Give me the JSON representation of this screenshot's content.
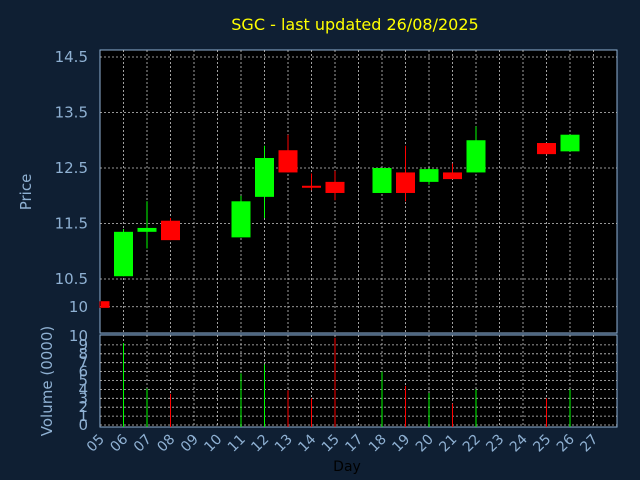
{
  "colors": {
    "background": "#0f1f33",
    "title": "#ffff00",
    "axis_text": "#8fb1d3",
    "panel_fill": "#000000",
    "grid": "#c8c8c8",
    "up": "#00ff00",
    "down": "#ff0000"
  },
  "chart_data": {
    "type": "candlestick",
    "title": "SGC - last updated 26/08/2025",
    "xlabel": "Day",
    "x_ticks": [
      "05",
      "06",
      "07",
      "08",
      "09",
      "10",
      "11",
      "12",
      "13",
      "14",
      "15",
      "17",
      "18",
      "19",
      "20",
      "21",
      "22",
      "23",
      "24",
      "25",
      "26",
      "27"
    ],
    "price_panel": {
      "ylabel": "Price",
      "ylim": [
        10,
        14.5
      ],
      "y_ticks": [
        "10",
        "10.5",
        "11.5",
        "12.5",
        "13.5",
        "14.5"
      ],
      "candles": [
        {
          "x": "05",
          "open": 10.1,
          "high": 10.1,
          "low": 9.98,
          "close": 9.98
        },
        {
          "x": "06",
          "open": 10.55,
          "high": 11.4,
          "low": 10.55,
          "close": 11.35
        },
        {
          "x": "07",
          "open": 11.35,
          "high": 11.9,
          "low": 11.05,
          "close": 11.42
        },
        {
          "x": "08",
          "open": 11.55,
          "high": 11.6,
          "low": 11.2,
          "close": 11.2
        },
        {
          "x": "11",
          "open": 11.25,
          "high": 12.0,
          "low": 11.25,
          "close": 11.9
        },
        {
          "x": "12",
          "open": 11.98,
          "high": 12.9,
          "low": 11.6,
          "close": 12.68
        },
        {
          "x": "13",
          "open": 12.82,
          "high": 13.1,
          "low": 12.42,
          "close": 12.42
        },
        {
          "x": "14",
          "open": 12.18,
          "high": 12.4,
          "low": 12.1,
          "close": 12.16
        },
        {
          "x": "15",
          "open": 12.25,
          "high": 12.45,
          "low": 11.92,
          "close": 12.05
        },
        {
          "x": "18",
          "open": 12.05,
          "high": 12.5,
          "low": 12.05,
          "close": 12.5
        },
        {
          "x": "19",
          "open": 12.42,
          "high": 12.9,
          "low": 11.9,
          "close": 12.05
        },
        {
          "x": "20",
          "open": 12.25,
          "high": 12.5,
          "low": 12.2,
          "close": 12.48
        },
        {
          "x": "21",
          "open": 12.42,
          "high": 12.58,
          "low": 12.3,
          "close": 12.3
        },
        {
          "x": "22",
          "open": 12.42,
          "high": 13.25,
          "low": 12.42,
          "close": 13.0
        },
        {
          "x": "25",
          "open": 12.95,
          "high": 12.95,
          "low": 12.75,
          "close": 12.75
        },
        {
          "x": "26",
          "open": 12.8,
          "high": 13.1,
          "low": 12.8,
          "close": 13.1
        }
      ]
    },
    "volume_panel": {
      "ylabel": "Volume (0000)",
      "ylim": [
        0,
        10
      ],
      "y_ticks": [
        "0",
        "1",
        "2",
        "3",
        "4",
        "5",
        "6",
        "7",
        "8",
        "9",
        "10"
      ],
      "bars": [
        {
          "x": "06",
          "value": 9.2,
          "direction": "up"
        },
        {
          "x": "07",
          "value": 4.1,
          "direction": "up"
        },
        {
          "x": "08",
          "value": 3.5,
          "direction": "down"
        },
        {
          "x": "11",
          "value": 5.8,
          "direction": "up"
        },
        {
          "x": "12",
          "value": 6.8,
          "direction": "up"
        },
        {
          "x": "13",
          "value": 3.9,
          "direction": "down"
        },
        {
          "x": "14",
          "value": 3.0,
          "direction": "down"
        },
        {
          "x": "15",
          "value": 9.8,
          "direction": "down"
        },
        {
          "x": "18",
          "value": 6.0,
          "direction": "up"
        },
        {
          "x": "19",
          "value": 4.4,
          "direction": "down"
        },
        {
          "x": "20",
          "value": 3.6,
          "direction": "up"
        },
        {
          "x": "21",
          "value": 2.4,
          "direction": "down"
        },
        {
          "x": "22",
          "value": 4.0,
          "direction": "up"
        },
        {
          "x": "25",
          "value": 3.0,
          "direction": "down"
        },
        {
          "x": "26",
          "value": 4.0,
          "direction": "up"
        }
      ]
    },
    "grid": true
  }
}
